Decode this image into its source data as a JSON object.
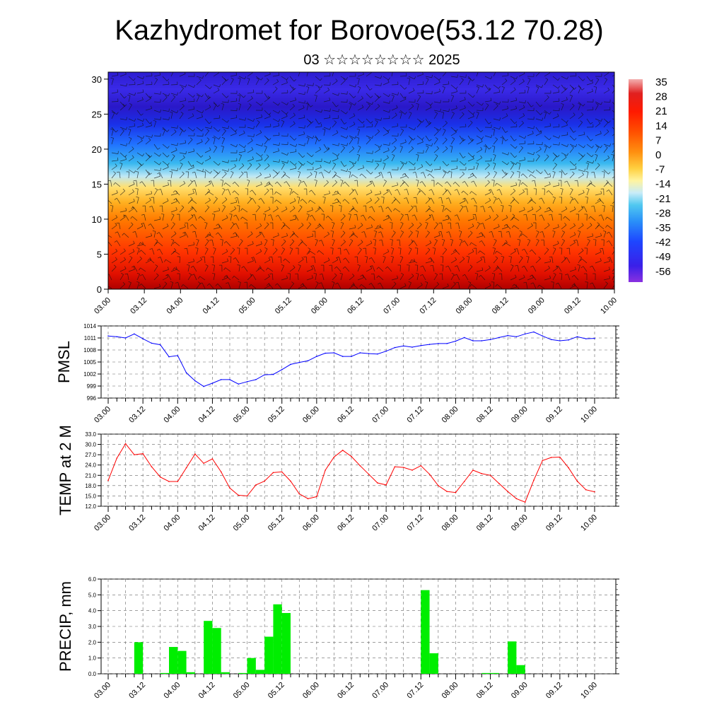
{
  "title": "Kazhydromet for Borovoe(53.12 70.28)",
  "subtitle": "03 ☆☆☆☆☆☆☆☆ 2025",
  "colors": {
    "pmsl": "#0000ff",
    "temp": "#ff0000",
    "precip": "#00ee00"
  },
  "chart_data": [
    {
      "type": "heatmap",
      "name": "temperature-wind cross-section",
      "yticks": [
        "0",
        "5",
        "10",
        "15",
        "20",
        "25",
        "30"
      ],
      "ylim": [
        0,
        31
      ],
      "xticks": [
        "03.00",
        "03.12",
        "04.00",
        "04.12",
        "05.00",
        "05.12",
        "06.00",
        "06.12",
        "07.00",
        "07.12",
        "08.00",
        "08.12",
        "09.00",
        "09.12",
        "10.00"
      ],
      "colorbar_labels": [
        "35",
        "28",
        "21",
        "14",
        "7",
        "0",
        "-7",
        "-14",
        "-21",
        "-28",
        "-35",
        "-42",
        "-49",
        "-56"
      ],
      "overlay": "wind barbs"
    },
    {
      "type": "line",
      "ylabel": "PMSL",
      "ylim": [
        996,
        1014
      ],
      "yticks": [
        "1014",
        "1011",
        "1008",
        "1005",
        "1002",
        "999",
        "996"
      ],
      "xticks": [
        "03.00",
        "03.12",
        "04.00",
        "04.12",
        "05.00",
        "05.12",
        "06.00",
        "06.12",
        "07.00",
        "07.12",
        "08.00",
        "08.12",
        "09.00",
        "09.12",
        "10.00"
      ],
      "x": [
        0,
        3,
        6,
        9,
        12,
        15,
        18,
        21,
        24,
        27,
        30,
        33,
        36,
        39,
        42,
        45,
        48,
        51,
        54,
        57,
        60,
        63,
        66,
        69,
        72,
        75,
        78,
        81,
        84,
        87,
        90,
        93,
        96,
        99,
        102,
        105,
        108,
        111,
        114,
        117,
        120,
        123,
        126,
        129,
        132,
        135,
        138,
        141,
        144,
        147,
        150,
        153,
        156,
        159,
        162,
        165,
        168
      ],
      "values": [
        1011.5,
        1011.3,
        1011.0,
        1012.0,
        1010.8,
        1009.7,
        1009.3,
        1006.3,
        1006.6,
        1002.3,
        1000.3,
        998.9,
        999.7,
        1000.6,
        1000.6,
        999.5,
        1000.1,
        1000.6,
        1001.8,
        1001.9,
        1003.1,
        1004.4,
        1004.9,
        1005.3,
        1006.4,
        1007.2,
        1007.3,
        1006.4,
        1006.4,
        1007.3,
        1007.1,
        1007.0,
        1007.7,
        1008.6,
        1009.0,
        1008.7,
        1009.1,
        1009.4,
        1009.6,
        1009.6,
        1010.2,
        1011.1,
        1010.3,
        1010.3,
        1010.6,
        1011.1,
        1011.6,
        1011.3,
        1012.0,
        1012.5,
        1011.5,
        1010.6,
        1010.3,
        1010.5,
        1011.3,
        1010.8,
        1010.9
      ]
    },
    {
      "type": "line",
      "ylabel": "TEMP at 2 M",
      "ylim": [
        12,
        33
      ],
      "yticks": [
        "33.0",
        "30.0",
        "27.0",
        "24.0",
        "21.0",
        "18.0",
        "15.0",
        "12.0"
      ],
      "xticks": [
        "03.00",
        "03.12",
        "04.00",
        "04.12",
        "05.00",
        "05.12",
        "06.00",
        "06.12",
        "07.00",
        "07.12",
        "08.00",
        "08.12",
        "09.00",
        "09.12",
        "10.00"
      ],
      "x": [
        0,
        3,
        6,
        9,
        12,
        15,
        18,
        21,
        24,
        27,
        30,
        33,
        36,
        39,
        42,
        45,
        48,
        51,
        54,
        57,
        60,
        63,
        66,
        69,
        72,
        75,
        78,
        81,
        84,
        87,
        90,
        93,
        96,
        99,
        102,
        105,
        108,
        111,
        114,
        117,
        120,
        123,
        126,
        129,
        132,
        135,
        138,
        141,
        144,
        147,
        150,
        153,
        156,
        159,
        162,
        165,
        168
      ],
      "values": [
        19.5,
        26.0,
        30.2,
        27.0,
        27.3,
        23.5,
        20.5,
        19.2,
        19.2,
        23.2,
        27.2,
        24.5,
        25.8,
        22.0,
        17.3,
        15.2,
        15.0,
        18.2,
        19.3,
        21.8,
        22.0,
        19.3,
        15.6,
        14.2,
        14.8,
        22.5,
        26.3,
        28.3,
        26.5,
        23.8,
        21.3,
        18.8,
        18.2,
        23.5,
        23.3,
        22.5,
        23.8,
        21.3,
        18.0,
        16.3,
        16.0,
        19.2,
        22.5,
        21.5,
        21.0,
        18.6,
        16.3,
        14.2,
        13.2,
        19.6,
        25.3,
        26.2,
        26.3,
        23.2,
        19.3,
        16.8,
        16.2
      ]
    },
    {
      "type": "bar",
      "ylabel": "PRECIP, mm",
      "ylim": [
        0,
        6
      ],
      "yticks": [
        "6.0",
        "5.0",
        "4.0",
        "3.0",
        "2.0",
        "1.0",
        "0.0"
      ],
      "xticks": [
        "03.00",
        "03.12",
        "04.00",
        "04.12",
        "05.00",
        "05.12",
        "06.00",
        "06.12",
        "07.00",
        "07.12",
        "08.00",
        "08.12",
        "09.00",
        "09.12",
        "10.00"
      ],
      "x": [
        0,
        3,
        6,
        9,
        12,
        15,
        18,
        21,
        24,
        27,
        30,
        33,
        36,
        39,
        42,
        45,
        48,
        51,
        54,
        57,
        60,
        63,
        66,
        69,
        72,
        75,
        78,
        81,
        84,
        87,
        90,
        93,
        96,
        99,
        102,
        105,
        108,
        111,
        114,
        117,
        120,
        123,
        126,
        129,
        132,
        135,
        138,
        141,
        144,
        147,
        150,
        153,
        156,
        159,
        162,
        165
      ],
      "values": [
        0,
        0,
        0,
        2.0,
        0,
        0,
        0.05,
        1.7,
        1.45,
        0.1,
        0,
        3.35,
        2.9,
        0.1,
        0,
        0.05,
        1.0,
        0.25,
        2.35,
        4.4,
        3.85,
        0,
        0,
        0,
        0,
        0,
        0,
        0,
        0,
        0,
        0,
        0,
        0,
        0,
        0,
        0,
        5.3,
        1.3,
        0,
        0,
        0,
        0,
        0,
        0.05,
        0.05,
        0,
        2.05,
        0.55,
        0,
        0,
        0,
        0,
        0,
        0,
        0,
        0
      ]
    }
  ]
}
